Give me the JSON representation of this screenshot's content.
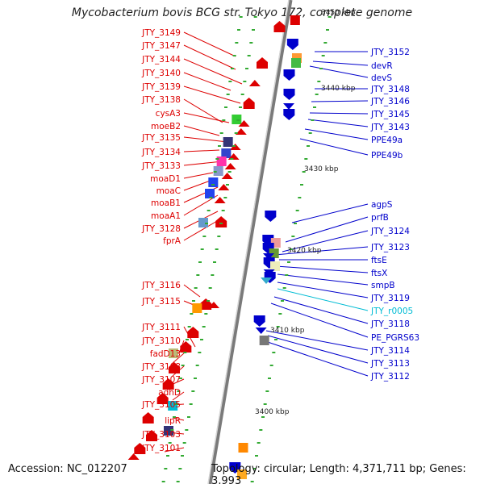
{
  "title": "Mycobacterium bovis BCG str. Tokyo 172, complete genome",
  "accession": "Accession: NC_012207",
  "topology": "Topology: circular; Length: 4,371,711 bp; Genes: 3,993",
  "colors": {
    "red": "#dd0000",
    "blue": "#0000cc",
    "cyan": "#00bcd4"
  },
  "scale_labels": [
    "3450 kbp",
    "3440 kbp",
    "3430 kbp",
    "3420 kbp",
    "3410 kbp",
    "3400 kbp"
  ],
  "left_labels": [
    "JTY_3149",
    "JTY_3147",
    "JTY_3144",
    "JTY_3140",
    "JTY_3139",
    "JTY_3138",
    "cysA3",
    "moeB2",
    "JTY_3135",
    "JTY_3134",
    "JTY_3133",
    "moaD1",
    "moaC",
    "moaB1",
    "moaA1",
    "JTY_3128",
    "fprA",
    "JTY_3116",
    "JTY_3115",
    "JTY_3111",
    "JTY_3110",
    "fadD13",
    "JTY_3108",
    "JTY_3107",
    "adhD",
    "JTY_3105",
    "lipR",
    "JTY_3103",
    "JTY_3101"
  ],
  "right_labels": [
    "JTY_3152",
    "devR",
    "devS",
    "JTY_3148",
    "JTY_3146",
    "JTY_3145",
    "JTY_3143",
    "PPE49a",
    "PPE49b",
    "agpS",
    "prfB",
    "JTY_3124",
    "JTY_3123",
    "ftsE",
    "ftsX",
    "smpB",
    "JTY_3119",
    "JTY_r0005",
    "JTY_3118",
    "PE_PGRS63",
    "JTY_3114",
    "JTY_3113",
    "JTY_3112"
  ]
}
